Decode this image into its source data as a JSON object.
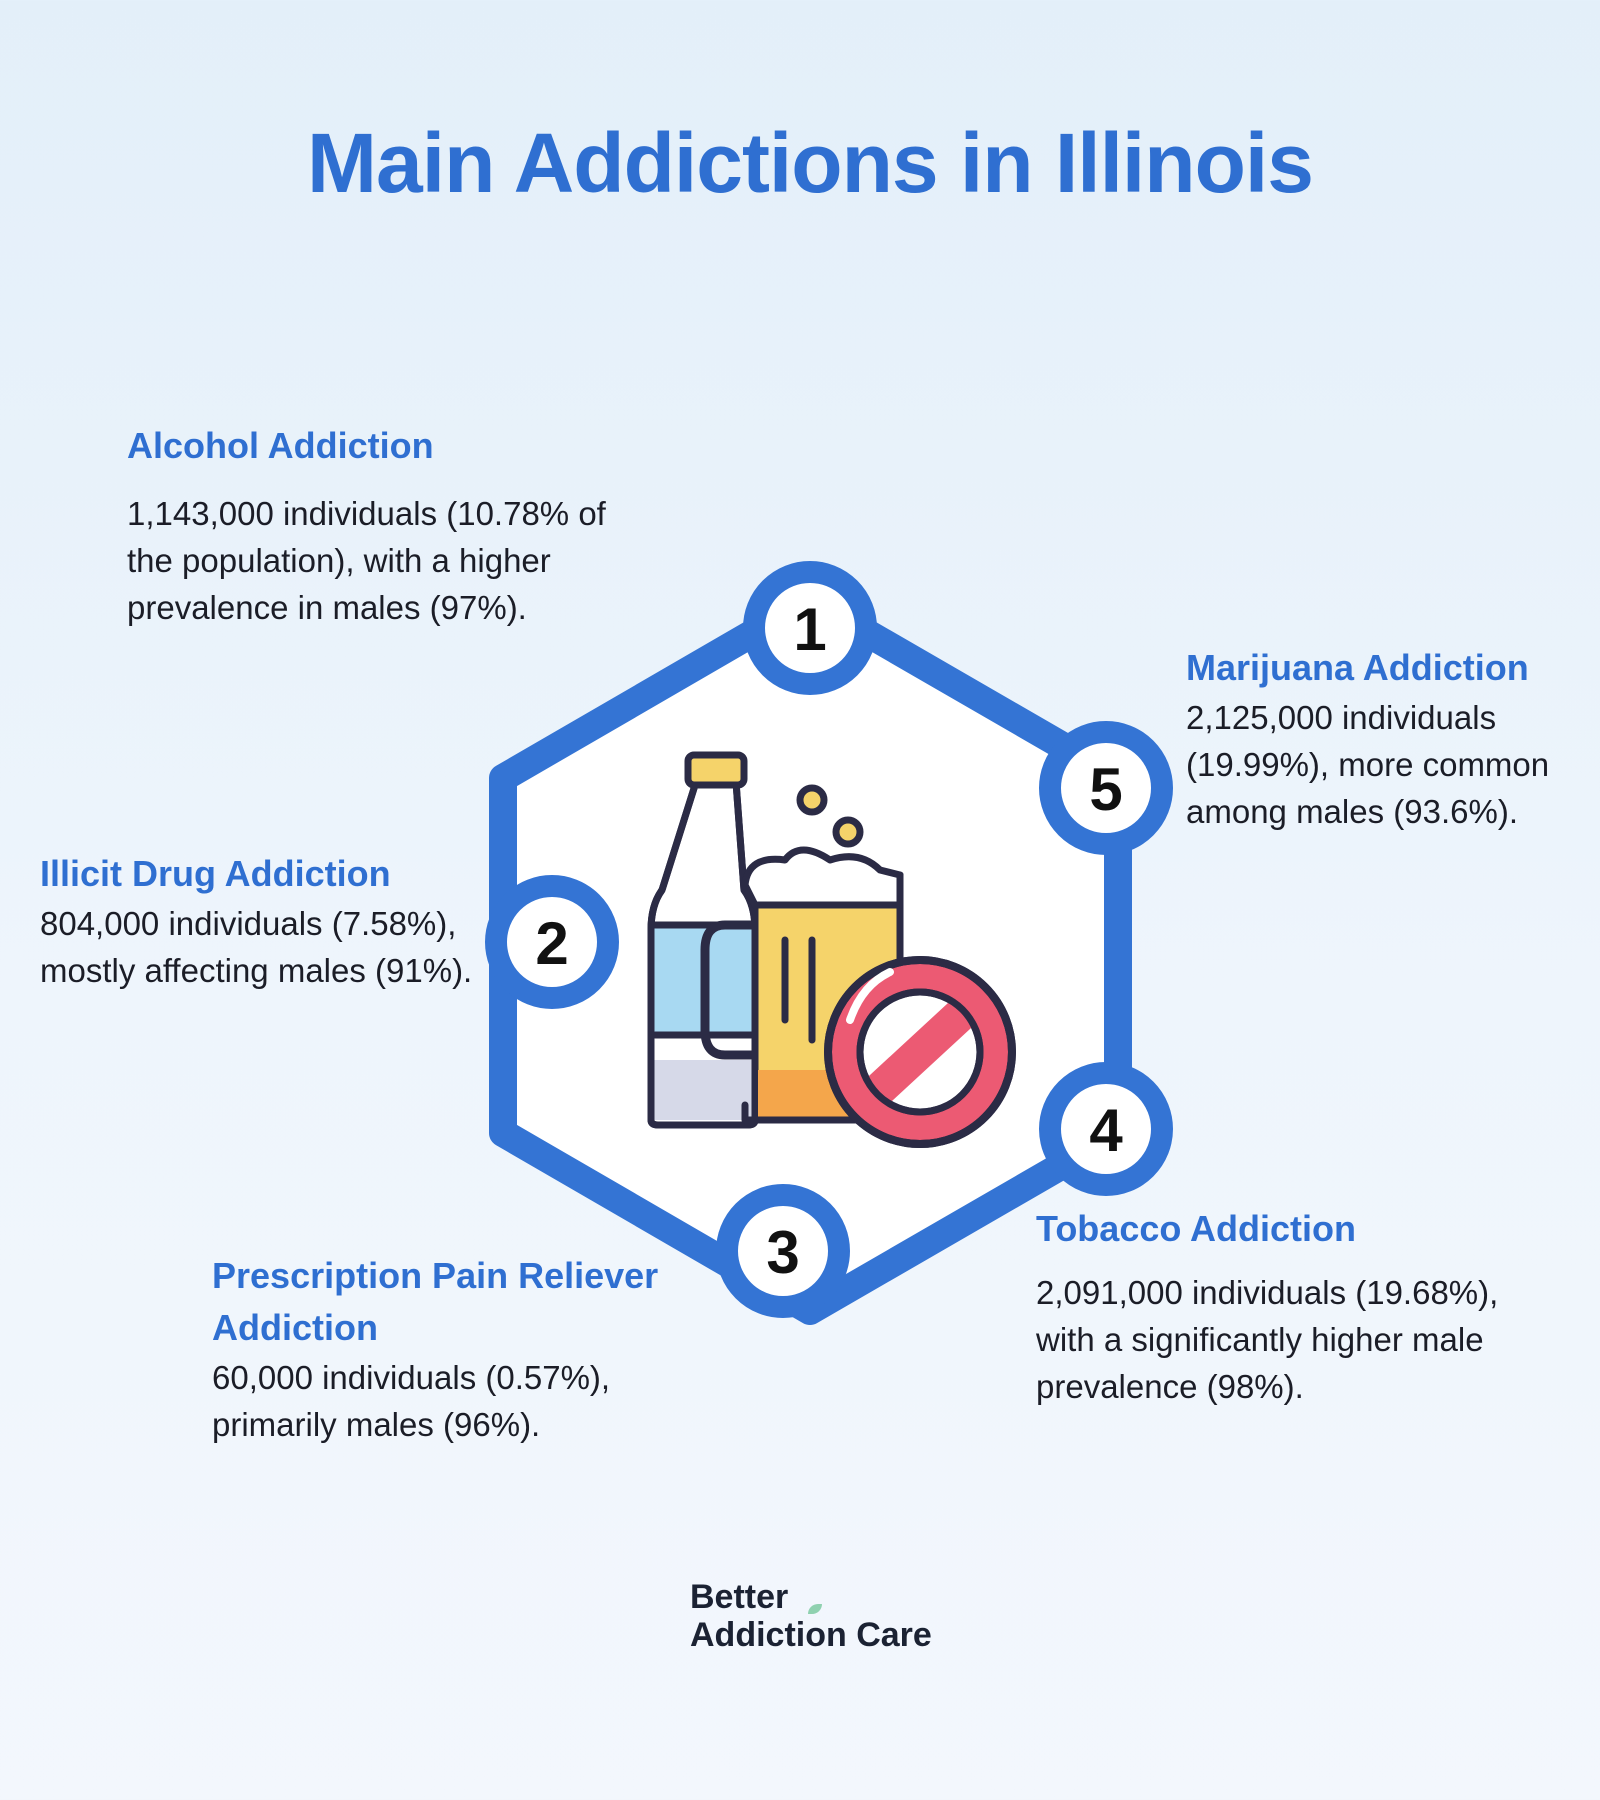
{
  "title": "Main Addictions in Illinois",
  "items": [
    {
      "number": "1",
      "heading": "Alcohol Addiction",
      "text": "1,143,000 individuals (10.78% of the population), with a higher prevalence in males (97%)."
    },
    {
      "number": "2",
      "heading": "Illicit Drug Addiction",
      "text": "804,000 individuals (7.58%), mostly affecting males (91%)."
    },
    {
      "number": "3",
      "heading": "Prescription Pain Reliever Addiction",
      "text": "60,000 individuals (0.57%), primarily males (96%)."
    },
    {
      "number": "4",
      "heading": "Tobacco Addiction",
      "text": "2,091,000 individuals (19.68%), with a significantly higher male prevalence (98%)."
    },
    {
      "number": "5",
      "heading": "Marijuana Addiction",
      "text": "2,125,000 individuals (19.99%), more common among males (93.6%)."
    }
  ],
  "logo": {
    "line1": "Better",
    "line2": "Addiction Care"
  },
  "colors": {
    "accent": "#2f6fd1",
    "ban": "#ec5a73",
    "beer": "#f5d36a",
    "bottle": "#a8d9f2"
  }
}
